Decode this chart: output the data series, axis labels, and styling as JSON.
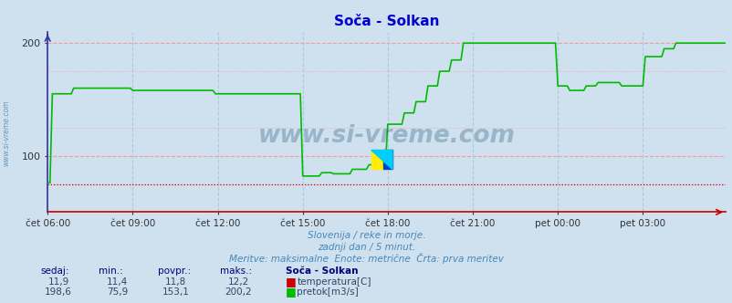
{
  "title": "Soča - Solkan",
  "title_color": "#0000cc",
  "fig_bg_color": "#cfe0ef",
  "plot_bg_color": "#cfe0ef",
  "xlim": [
    0,
    287
  ],
  "ylim": [
    50,
    210
  ],
  "yticks": [
    100,
    200
  ],
  "ytick_labels": [
    "100",
    "200"
  ],
  "xtick_labels": [
    "čet 06:00",
    "čet 09:00",
    "čet 12:00",
    "čet 15:00",
    "čet 18:00",
    "čet 21:00",
    "pet 00:00",
    "pet 03:00"
  ],
  "xtick_positions": [
    0,
    36,
    72,
    108,
    144,
    180,
    216,
    252
  ],
  "grid_color_h": "#ff9999",
  "grid_color_v": "#aaccdd",
  "temp_color": "#cc0000",
  "flow_color": "#00bb00",
  "temp_value": 75,
  "watermark": "www.si-vreme.com",
  "watermark_color": "#1a5276",
  "subtitle1": "Slovenija / reke in morje.",
  "subtitle2": "zadnji dan / 5 minut.",
  "subtitle3": "Meritve: maksimalne  Enote: metrične  Črta: prva meritev",
  "subtitle_color": "#4488bb",
  "table_header": [
    "sedaj:",
    "min.:",
    "povpr.:",
    "maks.:",
    "Soča - Solkan"
  ],
  "temp_row": [
    "11,9",
    "11,4",
    "11,8",
    "12,2",
    "temperatura[C]"
  ],
  "flow_row": [
    "198,6",
    "75,9",
    "153,1",
    "200,2",
    "pretok[m3/s]"
  ],
  "flow_data_x": [
    0,
    1,
    2,
    10,
    11,
    35,
    36,
    70,
    71,
    72,
    73,
    107,
    108,
    115,
    116,
    120,
    121,
    128,
    129,
    135,
    136,
    143,
    144,
    150,
    151,
    155,
    156,
    160,
    161,
    165,
    166,
    170,
    171,
    175,
    176,
    179,
    180,
    215,
    216,
    220,
    221,
    227,
    228,
    232,
    233,
    242,
    243,
    252,
    253,
    260,
    261,
    265,
    266,
    287
  ],
  "flow_data_y": [
    76,
    76,
    155,
    155,
    160,
    160,
    158,
    158,
    155,
    155,
    155,
    155,
    82,
    82,
    85,
    85,
    84,
    84,
    88,
    88,
    92,
    92,
    128,
    128,
    138,
    138,
    148,
    148,
    162,
    162,
    175,
    175,
    185,
    185,
    200,
    200,
    200,
    200,
    162,
    162,
    158,
    158,
    162,
    162,
    165,
    165,
    162,
    162,
    188,
    188,
    195,
    195,
    200,
    200
  ]
}
